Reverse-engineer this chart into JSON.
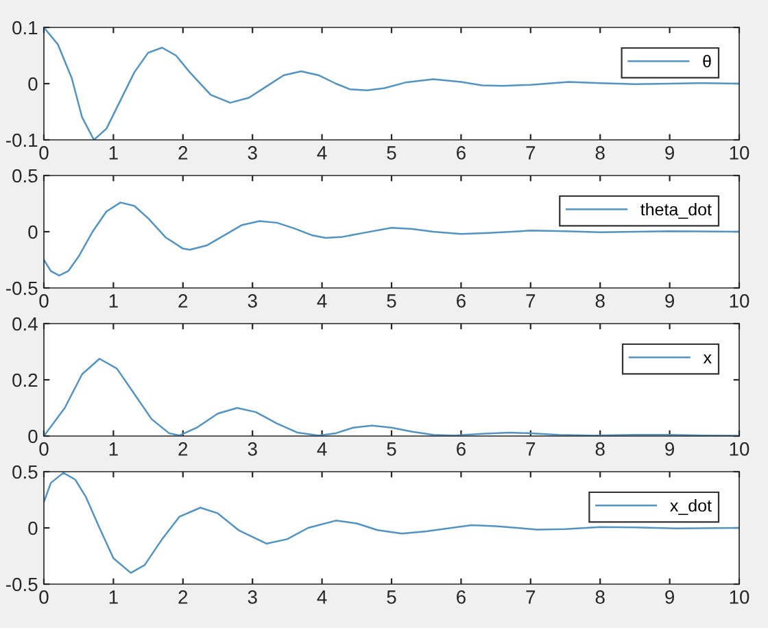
{
  "chart_data": [
    {
      "type": "line",
      "x": [
        0,
        0.2,
        0.4,
        0.55,
        0.72,
        0.9,
        1.1,
        1.3,
        1.5,
        1.7,
        1.9,
        2.1,
        2.4,
        2.68,
        2.95,
        3.2,
        3.45,
        3.7,
        3.95,
        4.2,
        4.4,
        4.65,
        4.9,
        5.2,
        5.6,
        6.0,
        6.3,
        6.6,
        7.0,
        7.55,
        8.0,
        8.5,
        9.0,
        9.5,
        10
      ],
      "series": [
        {
          "name": "θ",
          "color": "#4f94c4",
          "values": [
            0.1,
            0.07,
            0.01,
            -0.06,
            -0.1,
            -0.08,
            -0.03,
            0.02,
            0.055,
            0.064,
            0.05,
            0.02,
            -0.02,
            -0.034,
            -0.025,
            -0.005,
            0.015,
            0.022,
            0.015,
            0.0,
            -0.01,
            -0.012,
            -0.008,
            0.002,
            0.008,
            0.003,
            -0.003,
            -0.004,
            -0.002,
            0.003,
            0.001,
            -0.001,
            0,
            0.001,
            0
          ]
        }
      ],
      "xlim": [
        0,
        10
      ],
      "xticks": [
        0,
        1,
        2,
        3,
        4,
        5,
        6,
        7,
        8,
        9,
        10
      ],
      "ylim": [
        -0.1,
        0.1
      ],
      "yticks": [
        -0.1,
        0,
        0.1
      ],
      "legend": "top right",
      "grid": false
    },
    {
      "type": "line",
      "x": [
        0,
        0.1,
        0.22,
        0.35,
        0.5,
        0.7,
        0.9,
        1.1,
        1.3,
        1.5,
        1.75,
        2.0,
        2.1,
        2.35,
        2.6,
        2.85,
        3.1,
        3.35,
        3.6,
        3.85,
        4.05,
        4.3,
        4.6,
        5.0,
        5.3,
        5.6,
        6.0,
        6.4,
        7.0,
        7.5,
        8.0,
        8.5,
        9.0,
        10
      ],
      "series": [
        {
          "name": "theta_dot",
          "color": "#4f94c4",
          "values": [
            -0.25,
            -0.35,
            -0.39,
            -0.35,
            -0.22,
            0.0,
            0.18,
            0.26,
            0.23,
            0.12,
            -0.05,
            -0.15,
            -0.16,
            -0.12,
            -0.03,
            0.06,
            0.095,
            0.08,
            0.03,
            -0.03,
            -0.055,
            -0.045,
            -0.01,
            0.035,
            0.025,
            0.0,
            -0.02,
            -0.01,
            0.01,
            0.005,
            -0.005,
            0,
            0.005,
            0
          ]
        }
      ],
      "xlim": [
        0,
        10
      ],
      "xticks": [
        0,
        1,
        2,
        3,
        4,
        5,
        6,
        7,
        8,
        9,
        10
      ],
      "ylim": [
        -0.5,
        0.5
      ],
      "yticks": [
        -0.5,
        0,
        0.5
      ],
      "legend": "top right",
      "grid": false
    },
    {
      "type": "line",
      "x": [
        0,
        0.3,
        0.55,
        0.8,
        1.05,
        1.3,
        1.55,
        1.8,
        1.95,
        2.2,
        2.5,
        2.78,
        3.05,
        3.35,
        3.65,
        3.95,
        4.2,
        4.45,
        4.72,
        5.0,
        5.3,
        5.6,
        5.9,
        6.3,
        6.7,
        7.0,
        7.4,
        7.9,
        8.5,
        9.0,
        9.5,
        10
      ],
      "series": [
        {
          "name": "x",
          "color": "#4f94c4",
          "values": [
            0,
            0.1,
            0.22,
            0.275,
            0.24,
            0.15,
            0.06,
            0.01,
            0.002,
            0.03,
            0.08,
            0.1,
            0.085,
            0.045,
            0.012,
            0.002,
            0.01,
            0.03,
            0.037,
            0.03,
            0.015,
            0.004,
            0.002,
            0.008,
            0.012,
            0.01,
            0.004,
            0.002,
            0.004,
            0.004,
            0.002,
            0.001
          ]
        }
      ],
      "xlim": [
        0,
        10
      ],
      "xticks": [
        0,
        1,
        2,
        3,
        4,
        5,
        6,
        7,
        8,
        9,
        10
      ],
      "ylim": [
        0,
        0.4
      ],
      "yticks": [
        0,
        0.2,
        0.4
      ],
      "legend": "top right",
      "grid": false
    },
    {
      "type": "line",
      "x": [
        0,
        0.1,
        0.28,
        0.45,
        0.6,
        0.8,
        1.0,
        1.25,
        1.45,
        1.7,
        1.95,
        2.25,
        2.5,
        2.8,
        3.2,
        3.5,
        3.8,
        4.2,
        4.5,
        4.8,
        5.15,
        5.5,
        6.15,
        6.5,
        7.1,
        7.5,
        8.0,
        8.5,
        9.1,
        10
      ],
      "series": [
        {
          "name": "x_dot",
          "color": "#4f94c4",
          "values": [
            0.23,
            0.4,
            0.49,
            0.43,
            0.28,
            0.0,
            -0.27,
            -0.4,
            -0.33,
            -0.1,
            0.1,
            0.18,
            0.13,
            -0.02,
            -0.14,
            -0.1,
            0.0,
            0.065,
            0.04,
            -0.02,
            -0.05,
            -0.03,
            0.025,
            0.015,
            -0.015,
            -0.01,
            0.007,
            0.005,
            -0.004,
            0
          ]
        }
      ],
      "xlim": [
        0,
        10
      ],
      "xticks": [
        0,
        1,
        2,
        3,
        4,
        5,
        6,
        7,
        8,
        9,
        10
      ],
      "ylim": [
        -0.5,
        0.5
      ],
      "yticks": [
        -0.5,
        0,
        0.5
      ],
      "legend": "top right",
      "grid": false
    }
  ]
}
